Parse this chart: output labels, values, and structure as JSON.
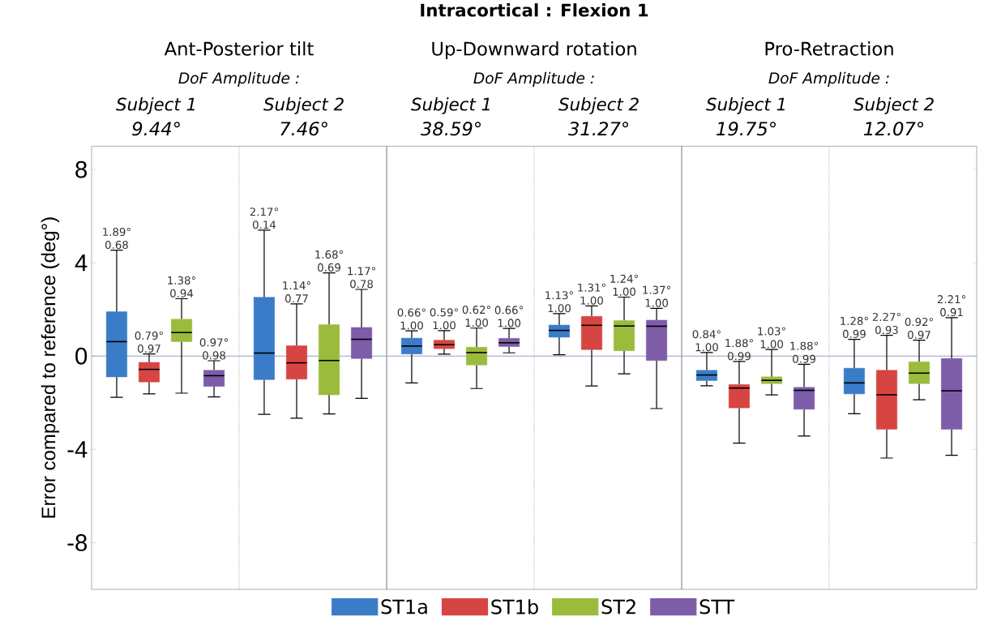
{
  "chart_data": {
    "type": "box",
    "title": "Intracortical : Flexion 1",
    "ylabel": "Error compared to reference (deg°)",
    "categories": [
      null,
      null,
      null,
      null,
      null,
      null
    ],
    "annotations": [
      "Ant-Posterior tilt",
      "Up-Downward rotation",
      "Pro-Retraction",
      "DoF Amplitude :",
      "DoF Amplitude :",
      "DoF Amplitude :",
      "Subject 1",
      "Subject 2",
      "Subject 1",
      "Subject 2",
      "Subject 1",
      "Subject 2",
      "9.44°",
      "7.46°",
      "38.59°",
      "31.27°",
      "19.75°",
      "12.07°"
    ],
    "series": [
      {
        "name": "ST1a",
        "color": "#3a7cc8",
        "boxes": [
          {
            "low": -1.77,
            "q1": -0.89,
            "median": 0.62,
            "q3": 1.9,
            "high": 4.54
          },
          {
            "low": -2.5,
            "q1": -1.01,
            "median": 0.13,
            "q3": 2.52,
            "high": 5.4
          },
          {
            "low": -1.15,
            "q1": 0.09,
            "median": 0.43,
            "q3": 0.77,
            "high": 1.08
          },
          {
            "low": 0.06,
            "q1": 0.81,
            "median": 1.1,
            "q3": 1.33,
            "high": 1.82
          },
          {
            "low": -1.27,
            "q1": -1.05,
            "median": -0.81,
            "q3": -0.61,
            "high": 0.15
          },
          {
            "low": -2.47,
            "q1": -1.62,
            "median": -1.15,
            "q3": -0.52,
            "high": 0.72
          }
        ],
        "value_labels": [
          "1.89° 0.68",
          "2.17° 0.14",
          "0.66° 1.00",
          "1.13° 1.00",
          "0.84° 1.00",
          "1.28° 0.99"
        ]
      },
      {
        "name": "ST1b",
        "color": "#d64541",
        "boxes": [
          {
            "low": -1.62,
            "q1": -1.11,
            "median": -0.57,
            "q3": -0.27,
            "high": 0.09
          },
          {
            "low": -2.66,
            "q1": -0.99,
            "median": -0.29,
            "q3": 0.44,
            "high": 2.24
          },
          {
            "low": 0.08,
            "q1": 0.32,
            "median": 0.49,
            "q3": 0.68,
            "high": 1.09
          },
          {
            "low": -1.28,
            "q1": 0.28,
            "median": 1.32,
            "q3": 1.7,
            "high": 2.15
          },
          {
            "low": -3.73,
            "q1": -2.22,
            "median": -1.37,
            "q3": -1.22,
            "high": -0.23
          },
          {
            "low": -4.37,
            "q1": -3.14,
            "median": -1.66,
            "q3": -0.61,
            "high": 0.89
          }
        ],
        "value_labels": [
          "0.79° 0.97",
          "1.14° 0.77",
          "0.59° 1.00",
          "1.31° 1.00",
          "1.88° 0.99",
          "2.27° 0.93"
        ]
      },
      {
        "name": "ST2",
        "color": "#9bbb3c",
        "boxes": [
          {
            "low": -1.59,
            "q1": 0.62,
            "median": 1.01,
            "q3": 1.58,
            "high": 2.46
          },
          {
            "low": -2.48,
            "q1": -1.66,
            "median": -0.19,
            "q3": 1.35,
            "high": 3.57
          },
          {
            "low": -1.39,
            "q1": -0.38,
            "median": 0.15,
            "q3": 0.38,
            "high": 1.2
          },
          {
            "low": -0.76,
            "q1": 0.23,
            "median": 1.29,
            "q3": 1.52,
            "high": 2.53
          },
          {
            "low": -1.66,
            "q1": -1.18,
            "median": -1.04,
            "q3": -0.89,
            "high": 0.28
          },
          {
            "low": -1.87,
            "q1": -1.18,
            "median": -0.73,
            "q3": -0.25,
            "high": 0.68
          }
        ],
        "value_labels": [
          "1.38° 0.94",
          "1.68° 0.69",
          "0.62° 1.00",
          "1.24° 1.00",
          "1.03° 1.00",
          "0.92° 0.97"
        ]
      },
      {
        "name": "STT",
        "color": "#7d5ca8",
        "boxes": [
          {
            "low": -1.75,
            "q1": -1.3,
            "median": -0.84,
            "q3": -0.61,
            "high": -0.2
          },
          {
            "low": -1.81,
            "q1": -0.1,
            "median": 0.72,
            "q3": 1.23,
            "high": 2.86
          },
          {
            "low": 0.14,
            "q1": 0.41,
            "median": 0.57,
            "q3": 0.76,
            "high": 1.19
          },
          {
            "low": -2.25,
            "q1": -0.19,
            "median": 1.28,
            "q3": 1.54,
            "high": 2.05
          },
          {
            "low": -3.43,
            "q1": -2.28,
            "median": -1.47,
            "q3": -1.34,
            "high": -0.35
          },
          {
            "low": -4.25,
            "q1": -3.14,
            "median": -1.49,
            "q3": -0.1,
            "high": 1.65
          }
        ],
        "value_labels": [
          "0.97° 0.98",
          "1.17° 0.78",
          "0.66° 1.00",
          "1.37° 1.00",
          "1.88° 0.99",
          "2.21° 0.91"
        ]
      }
    ],
    "ylim": [
      -10,
      9
    ],
    "yticks": [
      -8,
      -4,
      0,
      4,
      8
    ],
    "ref_lines": [
      {
        "axis": "y",
        "value": 0,
        "color": "#9c9cc4"
      }
    ],
    "legend": "bottom"
  }
}
